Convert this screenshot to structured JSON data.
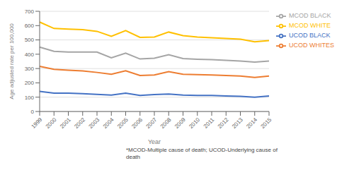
{
  "chart_data": {
    "type": "line",
    "categories": [
      "1999",
      "2000",
      "2001",
      "2002",
      "2003",
      "2004",
      "2005",
      "2006",
      "2007",
      "2008",
      "2009",
      "2010",
      "2011",
      "2012",
      "2013",
      "2014",
      "2015"
    ],
    "series": [
      {
        "name": "MCOD WHITE",
        "color": "#FFC000",
        "values": [
          625,
          580,
          575,
          572,
          560,
          525,
          565,
          518,
          520,
          555,
          530,
          520,
          515,
          510,
          505,
          487,
          495
        ]
      },
      {
        "name": "MCOD BLACK",
        "color": "#A5A5A5",
        "values": [
          450,
          420,
          415,
          415,
          415,
          375,
          408,
          367,
          372,
          397,
          370,
          365,
          362,
          358,
          352,
          345,
          352
        ]
      },
      {
        "name": "UCOD WHITES",
        "color": "#ED7D31",
        "values": [
          315,
          295,
          288,
          283,
          273,
          260,
          285,
          252,
          255,
          278,
          260,
          258,
          255,
          252,
          248,
          238,
          248
        ]
      },
      {
        "name": "UCOD BLACK",
        "color": "#4472C4",
        "values": [
          140,
          128,
          128,
          125,
          120,
          115,
          128,
          112,
          118,
          122,
          115,
          112,
          112,
          108,
          106,
          100,
          108
        ]
      }
    ],
    "x_label": "Year",
    "y_label": "Age adjusted rate per 100,000",
    "ylim": [
      0,
      700
    ],
    "yticks": [
      0,
      100,
      200,
      300,
      400,
      500,
      600,
      700
    ],
    "grid": true,
    "legend": "right",
    "annotations": [
      "*MCOD-Multiple cause of death;  UCOD-Underlying cause of\ndeath"
    ]
  }
}
